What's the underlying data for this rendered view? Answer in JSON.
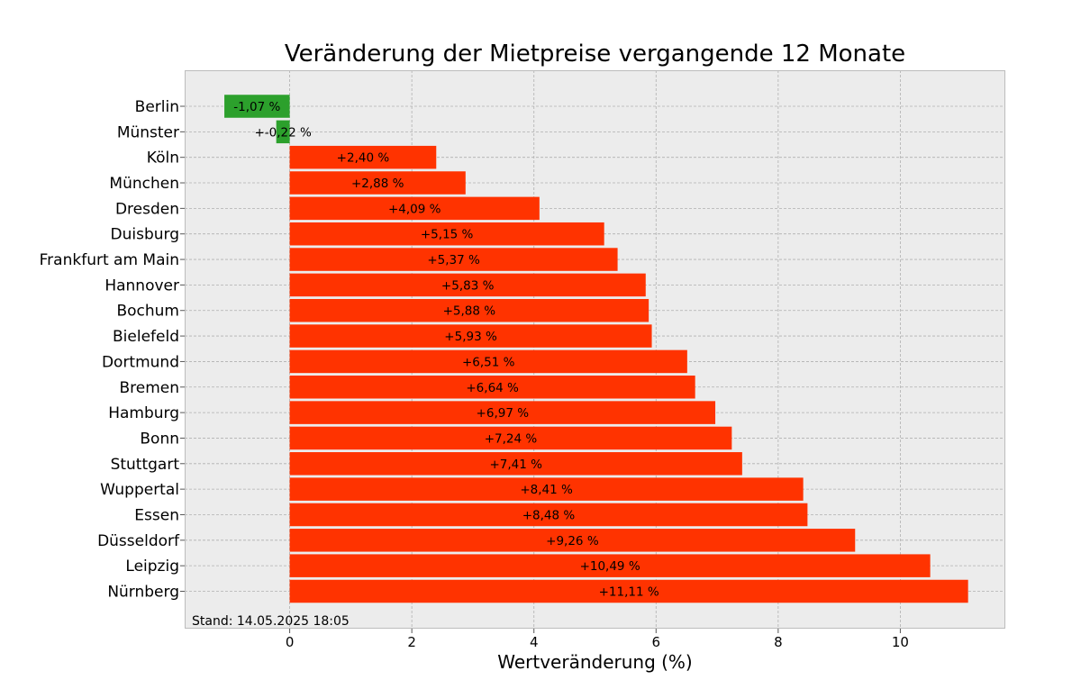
{
  "chart_data": {
    "type": "bar",
    "orientation": "horizontal",
    "title": "Veränderung der Mietpreise vergangende 12 Monate",
    "xlabel": "Wertveränderung (%)",
    "ylabel": "",
    "xlim": [
      -1.72,
      11.72
    ],
    "xticks": [
      0,
      2,
      4,
      6,
      8,
      10
    ],
    "xtick_labels": [
      "0",
      "2",
      "4",
      "6",
      "8",
      "10"
    ],
    "grid": true,
    "categories": [
      "Berlin",
      "Münster",
      "Köln",
      "München",
      "Dresden",
      "Duisburg",
      "Frankfurt am Main",
      "Hannover",
      "Bochum",
      "Bielefeld",
      "Dortmund",
      "Bremen",
      "Hamburg",
      "Bonn",
      "Stuttgart",
      "Wuppertal",
      "Essen",
      "Düsseldorf",
      "Leipzig",
      "Nürnberg"
    ],
    "values": [
      -1.07,
      -0.22,
      2.4,
      2.88,
      4.09,
      5.15,
      5.37,
      5.83,
      5.88,
      5.93,
      6.51,
      6.64,
      6.97,
      7.24,
      7.41,
      8.41,
      8.48,
      9.26,
      10.49,
      11.11
    ],
    "value_labels": [
      "-1,07 %",
      "+-0,22 %",
      "+2,40 %",
      "+2,88 %",
      "+4,09 %",
      "+5,15 %",
      "+5,37 %",
      "+5,83 %",
      "+5,88 %",
      "+5,93 %",
      "+6,51 %",
      "+6,64 %",
      "+6,97 %",
      "+7,24 %",
      "+7,41 %",
      "+8,41 %",
      "+8,48 %",
      "+9,26 %",
      "+10,49 %",
      "+11,11 %"
    ],
    "colors": {
      "negative": "#2ca02c",
      "positive": "#ff3300",
      "plot_background": "#ececec",
      "grid": "#b0b0b0"
    },
    "annotation": "Stand: 14.05.2025 18:05"
  }
}
